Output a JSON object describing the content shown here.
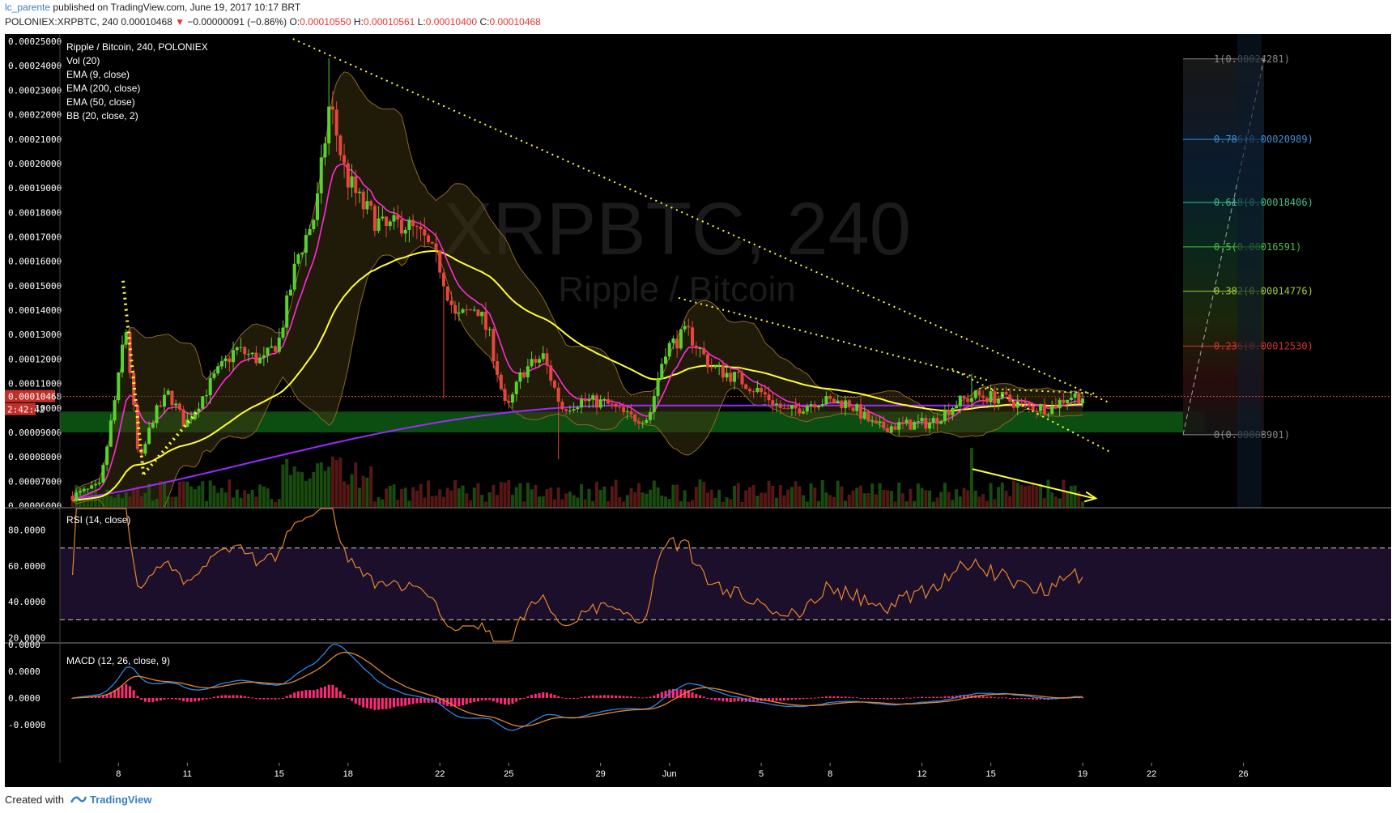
{
  "header": {
    "user": "lc_parente",
    "published": "published on TradingView.com, June 19, 2017 10:17 BRT",
    "symbol": "POLONIEX:XRPBTC, 240",
    "price": "0.00010468",
    "change": "−0.00000091 (−0.86%)",
    "ohlc": {
      "o": "0.00010550",
      "h": "0.00010561",
      "l": "0.00010400",
      "c": "0.00010468"
    }
  },
  "legend": {
    "title": "Ripple / Bitcoin, 240, POLONIEX",
    "items": [
      "Vol (20)",
      "EMA (9, close)",
      "EMA (200, close)",
      "EMA (50, close)",
      "BB (20, close, 2)"
    ]
  },
  "watermark": {
    "big": "XRPBTC, 240",
    "small": "Ripple / Bitcoin"
  },
  "colors": {
    "background": "#000000",
    "up": "#5bd12f",
    "down": "#e5473d",
    "ema9": "#ff2bd6",
    "ema50": "#ffff33",
    "ema200": "#9b2bff",
    "bb": "#8a6a2a",
    "rsi": "#e6862e",
    "macd": "#2d86e6",
    "signal": "#e6862e",
    "hist": "#ff2a7a"
  },
  "price_pane": {
    "ylim": [
      5.95e-05,
      0.000253
    ],
    "tick_labels": [
      "0.00025000",
      "0.00024000",
      "0.00023000",
      "0.00022000",
      "0.00021000",
      "0.00020000",
      "0.00019000",
      "0.00018000",
      "0.00017000",
      "0.00016000",
      "0.00015000",
      "0.00014000",
      "0.00013000",
      "0.00012000",
      "0.00011000",
      "0.00010000",
      "0.00009000",
      "0.00008000",
      "0.00007000",
      "0.00006000"
    ],
    "tick_values": [
      25,
      24,
      23,
      22,
      21,
      20,
      19,
      18,
      17,
      16,
      15,
      14,
      13,
      12,
      11,
      10,
      9,
      8,
      7,
      6
    ],
    "last_price_label": "0.00010468",
    "countdown_label": "2:42:42"
  },
  "fib": {
    "levels": [
      {
        "label": "1(0.00024281)",
        "value": 24.281,
        "color": "#888888"
      },
      {
        "label": "0.786(0.00020989)",
        "value": 20.989,
        "color": "#3a8fd6"
      },
      {
        "label": "0.618(0.00018406)",
        "value": 18.406,
        "color": "#3fbf8f"
      },
      {
        "label": "0.5(0.00016591)",
        "value": 16.591,
        "color": "#4bbf3f"
      },
      {
        "label": "0.382(0.00014776)",
        "value": 14.776,
        "color": "#9acd32"
      },
      {
        "label": "0.236(0.00012530)",
        "value": 12.53,
        "color": "#d9342b"
      },
      {
        "label": "0(0.00008901)",
        "value": 8.901,
        "color": "#888888"
      }
    ]
  },
  "rsi_pane": {
    "title": "RSI (14, close)",
    "ylim": [
      18,
      92
    ],
    "tick_labels": [
      "80.0000",
      "60.0000",
      "40.0000",
      "20.0000"
    ],
    "tick_values": [
      80,
      60,
      40,
      20
    ],
    "bands": [
      70,
      30
    ]
  },
  "macd_pane": {
    "title": "MACD (12, 26, close, 9)",
    "tick_labels": [
      "0.0000",
      "0.0000",
      "0.0000",
      "-0.0000"
    ]
  },
  "x_axis": {
    "labels": [
      "8",
      "11",
      "15",
      "18",
      "22",
      "25",
      "29",
      "Jun",
      "5",
      "8",
      "12",
      "15",
      "19",
      "22",
      "26"
    ],
    "days": [
      8,
      11,
      15,
      18,
      22,
      25,
      29,
      32,
      36,
      39,
      43,
      46,
      50,
      53,
      57
    ]
  },
  "footer": {
    "created_with": "Created with",
    "brand": "TradingView"
  },
  "chart_data": {
    "type": "candlestick",
    "symbol": "XRPBTC",
    "interval": "240",
    "units_note": "prices in 1e-5 BTC",
    "x_unit": "day index (May 2017; Jun 1 = 32)",
    "key_points": [
      {
        "x": 6.0,
        "y": 6.4
      },
      {
        "x": 7.2,
        "y": 6.8
      },
      {
        "x": 8.0,
        "y": 11.2
      },
      {
        "x": 8.3,
        "y": 13.5
      },
      {
        "x": 8.9,
        "y": 7.6
      },
      {
        "x": 9.5,
        "y": 9.6
      },
      {
        "x": 10.2,
        "y": 10.6
      },
      {
        "x": 10.9,
        "y": 9.3
      },
      {
        "x": 12.2,
        "y": 11.3
      },
      {
        "x": 13.1,
        "y": 12.4
      },
      {
        "x": 14.3,
        "y": 11.9
      },
      {
        "x": 15.0,
        "y": 12.8
      },
      {
        "x": 15.8,
        "y": 16.2
      },
      {
        "x": 16.6,
        "y": 18.0
      },
      {
        "x": 17.2,
        "y": 22.5
      },
      {
        "x": 17.9,
        "y": 19.5
      },
      {
        "x": 18.6,
        "y": 18.3
      },
      {
        "x": 19.6,
        "y": 17.3
      },
      {
        "x": 20.4,
        "y": 17.6
      },
      {
        "x": 21.3,
        "y": 16.9
      },
      {
        "x": 22.0,
        "y": 15.8
      },
      {
        "x": 22.7,
        "y": 13.6
      },
      {
        "x": 23.6,
        "y": 14.2
      },
      {
        "x": 24.2,
        "y": 12.8
      },
      {
        "x": 24.9,
        "y": 9.8
      },
      {
        "x": 25.6,
        "y": 11.5
      },
      {
        "x": 26.5,
        "y": 12.1
      },
      {
        "x": 27.3,
        "y": 10.0
      },
      {
        "x": 28.2,
        "y": 10.3
      },
      {
        "x": 29.2,
        "y": 10.2
      },
      {
        "x": 30.3,
        "y": 9.6
      },
      {
        "x": 31.1,
        "y": 9.6
      },
      {
        "x": 31.8,
        "y": 12.4
      },
      {
        "x": 32.8,
        "y": 13.1
      },
      {
        "x": 33.8,
        "y": 11.7
      },
      {
        "x": 35.0,
        "y": 11.2
      },
      {
        "x": 36.2,
        "y": 10.5
      },
      {
        "x": 37.1,
        "y": 9.8
      },
      {
        "x": 38.4,
        "y": 10.3
      },
      {
        "x": 39.8,
        "y": 10.2
      },
      {
        "x": 41.0,
        "y": 9.2
      },
      {
        "x": 42.2,
        "y": 9.3
      },
      {
        "x": 43.4,
        "y": 9.4
      },
      {
        "x": 44.5,
        "y": 10.2
      },
      {
        "x": 45.3,
        "y": 10.5
      },
      {
        "x": 46.5,
        "y": 10.4
      },
      {
        "x": 47.6,
        "y": 10.05
      },
      {
        "x": 48.6,
        "y": 10.0
      },
      {
        "x": 49.4,
        "y": 10.5
      },
      {
        "x": 50.0,
        "y": 10.47
      }
    ],
    "ylim": [
      5.95,
      25.3
    ]
  }
}
